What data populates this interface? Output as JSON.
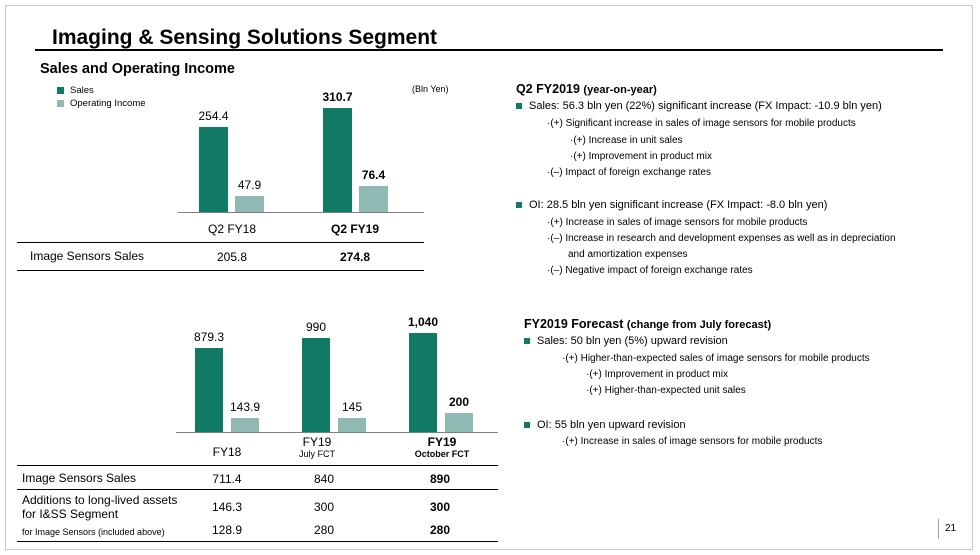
{
  "title": "Imaging & Sensing Solutions Segment",
  "section_title": "Sales and Operating Income",
  "legend": {
    "sales": "Sales",
    "oi": "Operating Income"
  },
  "unit": "(Bln Yen)",
  "chart_data": [
    {
      "type": "bar",
      "categories": [
        "Q2 FY18",
        "Q2 FY19"
      ],
      "series": [
        {
          "name": "Sales",
          "values": [
            254.4,
            310.7
          ]
        },
        {
          "name": "Operating Income",
          "values": [
            47.9,
            76.4
          ]
        }
      ],
      "value_labels": {
        "sales": [
          "254.4",
          "310.7"
        ],
        "oi": [
          "47.9",
          "76.4"
        ]
      }
    },
    {
      "type": "bar",
      "categories": [
        "FY18",
        "FY19 July FCT",
        "FY19 October FCT"
      ],
      "series": [
        {
          "name": "Sales",
          "values": [
            879.3,
            990,
            1040
          ]
        },
        {
          "name": "Operating Income",
          "values": [
            143.9,
            145,
            200
          ]
        }
      ],
      "value_labels": {
        "sales": [
          "879.3",
          "990",
          "1,040"
        ],
        "oi": [
          "143.9",
          "145",
          "200"
        ]
      }
    }
  ],
  "top_chart": {
    "cat1": "Q2 FY18",
    "cat2": "Q2 FY19",
    "table": {
      "label": "Image Sensors Sales",
      "v1": "205.8",
      "v2": "274.8"
    }
  },
  "bottom_chart": {
    "cat1": "FY18",
    "cat2_main": "FY19",
    "cat2_sub": "July FCT",
    "cat3_main": "FY19",
    "cat3_sub": "October FCT",
    "table": {
      "row1": {
        "label": "Image Sensors Sales",
        "v1": "711.4",
        "v2": "840",
        "v3": "890"
      },
      "row2": {
        "label_line1": "Additions to long-lived assets",
        "label_line2": "for I&SS Segment",
        "v1": "146.3",
        "v2": "300",
        "v3": "300"
      },
      "row3": {
        "label": "for Image Sensors (included above)",
        "v1": "128.9",
        "v2": "280",
        "v3": "280"
      }
    }
  },
  "q2": {
    "title": "Q2 FY2019",
    "title_paren": "(year-on-year)",
    "sales_line": "Sales: 56.3 bln yen (22%) significant increase (FX Impact: -10.9 bln yen)",
    "sales_sub": [
      "·(+) Significant increase in sales of image sensors for mobile products",
      "·(+) Increase in unit sales",
      "·(+) Improvement in product mix",
      "·(–) Impact of foreign exchange rates"
    ],
    "oi_line": "OI: 28.5 bln yen significant increase (FX Impact: -8.0 bln yen)",
    "oi_sub": [
      "·(+) Increase in sales of image sensors for mobile products",
      "·(–) Increase in research and development expenses as well as in depreciation",
      "and amortization expenses",
      "·(–) Negative impact of foreign exchange rates"
    ]
  },
  "forecast": {
    "title": "FY2019 Forecast",
    "title_paren": "(change from July forecast)",
    "sales_line": "Sales: 50 bln yen (5%) upward revision",
    "sales_sub": [
      "·(+) Higher-than-expected sales of image sensors for mobile products",
      "·(+) Improvement in product mix",
      "·(+) Higher-than-expected unit sales"
    ],
    "oi_line": "OI: 55 bln yen upward revision",
    "oi_sub": [
      "·(+) Increase in sales of image sensors for mobile products"
    ]
  },
  "page_number": "21"
}
